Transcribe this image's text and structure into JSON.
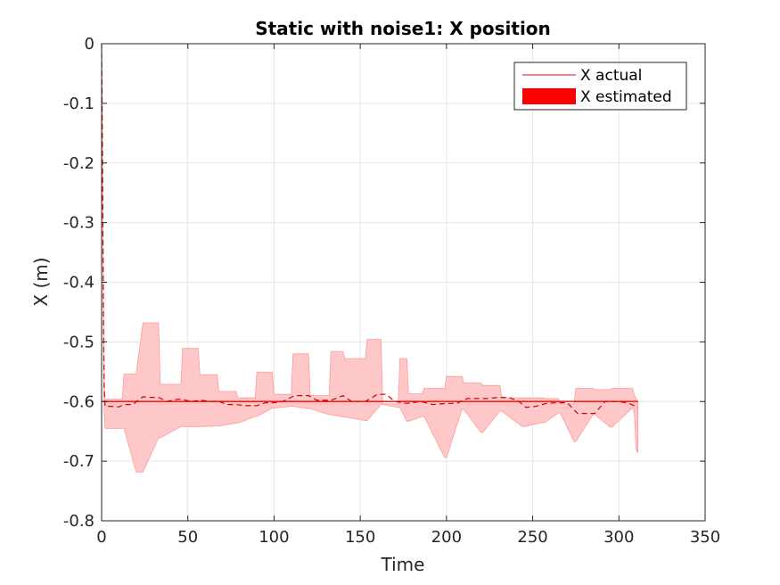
{
  "chart_data": {
    "type": "line",
    "title": "Static with noise1: X position",
    "xlabel": "Time",
    "ylabel": "X (m)",
    "xlim": [
      0,
      350
    ],
    "ylim": [
      -0.8,
      0
    ],
    "xticks": [
      0,
      50,
      100,
      150,
      200,
      250,
      300,
      350
    ],
    "yticks": [
      0,
      -0.1,
      -0.2,
      -0.3,
      -0.4,
      -0.5,
      -0.6,
      -0.7,
      -0.8
    ],
    "xtick_labels": [
      "0",
      "50",
      "100",
      "150",
      "200",
      "250",
      "300",
      "350"
    ],
    "ytick_labels": [
      "0",
      "-0.1",
      "-0.2",
      "-0.3",
      "-0.4",
      "-0.5",
      "-0.6",
      "-0.7",
      "-0.8"
    ],
    "grid": true,
    "legend_position": "top-right",
    "legend": [
      "X actual",
      "X estimated"
    ],
    "colors": {
      "actual": "#ff0000",
      "estimated": "#cc0000",
      "band_fill": "#ffc8c8",
      "band_edge": "#ff9999"
    },
    "series": [
      {
        "name": "X actual",
        "style": "solid",
        "x": [
          0,
          311
        ],
        "y": [
          -0.6,
          -0.6
        ]
      },
      {
        "name": "X estimated",
        "style": "dashed",
        "x": [
          0,
          0.5,
          1,
          1.5,
          2,
          5,
          10,
          13,
          18,
          24,
          28,
          33,
          38,
          42,
          46,
          52,
          58,
          63,
          68,
          73,
          78,
          83,
          90,
          95,
          100,
          105,
          112,
          120,
          125,
          133,
          140,
          145,
          153,
          160,
          165,
          170,
          177,
          185,
          192,
          200,
          206,
          212,
          218,
          224,
          230,
          236,
          242,
          246,
          252,
          258,
          264,
          270,
          276,
          280,
          286,
          292,
          298,
          305,
          311
        ],
        "y": [
          0,
          -0.2,
          -0.45,
          -0.58,
          -0.608,
          -0.608,
          -0.609,
          -0.605,
          -0.605,
          -0.592,
          -0.593,
          -0.593,
          -0.6,
          -0.597,
          -0.596,
          -0.6,
          -0.598,
          -0.6,
          -0.6,
          -0.605,
          -0.605,
          -0.607,
          -0.607,
          -0.602,
          -0.602,
          -0.6,
          -0.59,
          -0.59,
          -0.598,
          -0.598,
          -0.59,
          -0.6,
          -0.6,
          -0.588,
          -0.588,
          -0.6,
          -0.603,
          -0.6,
          -0.605,
          -0.603,
          -0.603,
          -0.595,
          -0.595,
          -0.595,
          -0.593,
          -0.593,
          -0.6,
          -0.61,
          -0.608,
          -0.603,
          -0.602,
          -0.602,
          -0.62,
          -0.62,
          -0.62,
          -0.6,
          -0.6,
          -0.602,
          -0.61
        ]
      }
    ],
    "band": {
      "name": "X estimated",
      "x": [
        0,
        1.5,
        2,
        12,
        13,
        20,
        24,
        33,
        34,
        46,
        47,
        56,
        57,
        67,
        68,
        78,
        79,
        89,
        90,
        99,
        100,
        110,
        111,
        120,
        121,
        132,
        133,
        140,
        141,
        153,
        154,
        162,
        163,
        172,
        173,
        177,
        178,
        186,
        187,
        199,
        200,
        209,
        210,
        220,
        221,
        231,
        232,
        244,
        245,
        256,
        257,
        265,
        266,
        274,
        275,
        285,
        286,
        295,
        296,
        308,
        309,
        310,
        311
      ],
      "upper": [
        0,
        -0.57,
        -0.596,
        -0.596,
        -0.554,
        -0.554,
        -0.468,
        -0.468,
        -0.571,
        -0.571,
        -0.511,
        -0.511,
        -0.555,
        -0.555,
        -0.583,
        -0.583,
        -0.594,
        -0.594,
        -0.551,
        -0.551,
        -0.588,
        -0.588,
        -0.52,
        -0.52,
        -0.59,
        -0.59,
        -0.516,
        -0.516,
        -0.528,
        -0.528,
        -0.496,
        -0.496,
        -0.604,
        -0.604,
        -0.528,
        -0.528,
        -0.587,
        -0.587,
        -0.578,
        -0.578,
        -0.558,
        -0.558,
        -0.569,
        -0.569,
        -0.573,
        -0.573,
        -0.594,
        -0.594,
        -0.594,
        -0.594,
        -0.595,
        -0.595,
        -0.604,
        -0.604,
        -0.578,
        -0.578,
        -0.58,
        -0.58,
        -0.578,
        -0.578,
        -0.59,
        -0.595,
        -0.6
      ],
      "lower": [
        0,
        -0.62,
        -0.645,
        -0.645,
        -0.645,
        -0.718,
        -0.718,
        -0.661,
        -0.661,
        -0.642,
        -0.642,
        -0.642,
        -0.642,
        -0.641,
        -0.641,
        -0.636,
        -0.636,
        -0.625,
        -0.625,
        -0.611,
        -0.611,
        -0.608,
        -0.608,
        -0.612,
        -0.612,
        -0.622,
        -0.622,
        -0.626,
        -0.626,
        -0.632,
        -0.632,
        -0.605,
        -0.605,
        -0.61,
        -0.61,
        -0.633,
        -0.633,
        -0.625,
        -0.625,
        -0.694,
        -0.694,
        -0.613,
        -0.613,
        -0.652,
        -0.652,
        -0.616,
        -0.616,
        -0.642,
        -0.642,
        -0.635,
        -0.635,
        -0.619,
        -0.619,
        -0.667,
        -0.667,
        -0.622,
        -0.622,
        -0.643,
        -0.643,
        -0.61,
        -0.62,
        -0.68,
        -0.686
      ]
    }
  }
}
